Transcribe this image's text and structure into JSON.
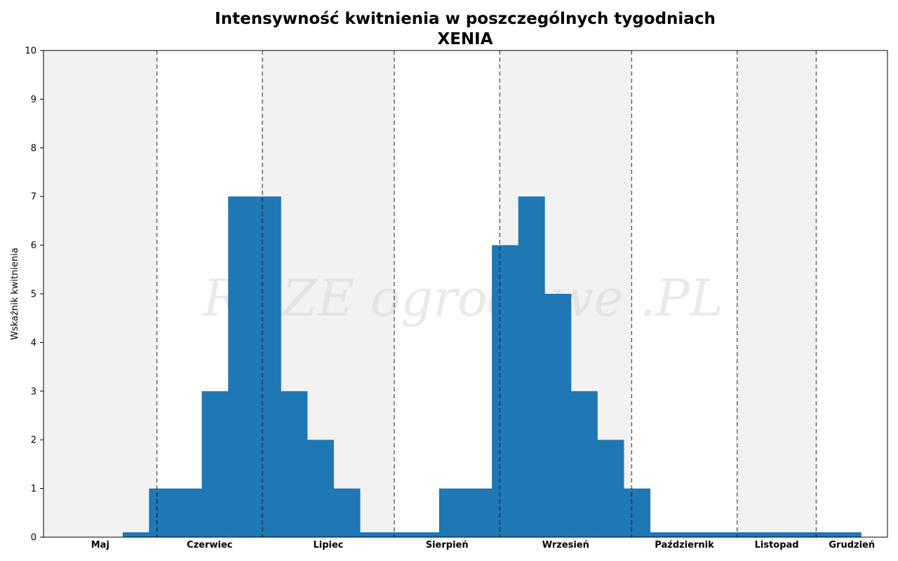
{
  "chart_data": {
    "type": "bar",
    "title": "Intensywność kwitnienia w poszczególnych tygodniach",
    "subtitle": "XENIA",
    "ylabel": "Wskaźnik kwitnienia",
    "ylim": [
      0,
      10
    ],
    "yticks": [
      0,
      1,
      2,
      3,
      4,
      5,
      6,
      7,
      8,
      9,
      10
    ],
    "week_range": [
      18,
      50
    ],
    "months": [
      {
        "name": "Maj",
        "start_week": 18.0,
        "end_week": 22.3,
        "shaded": true
      },
      {
        "name": "Czerwiec",
        "start_week": 22.3,
        "end_week": 26.3,
        "shaded": false
      },
      {
        "name": "Lipiec",
        "start_week": 26.3,
        "end_week": 31.3,
        "shaded": true
      },
      {
        "name": "Sierpień",
        "start_week": 31.3,
        "end_week": 35.3,
        "shaded": false
      },
      {
        "name": "Wrzesień",
        "start_week": 35.3,
        "end_week": 40.3,
        "shaded": true
      },
      {
        "name": "Październik",
        "start_week": 40.3,
        "end_week": 44.3,
        "shaded": false
      },
      {
        "name": "Listopad",
        "start_week": 44.3,
        "end_week": 47.3,
        "shaded": true
      },
      {
        "name": "Grudzień",
        "start_week": 47.3,
        "end_week": 50.0,
        "shaded": false
      }
    ],
    "weeks": [
      21,
      22,
      23,
      24,
      25,
      26,
      27,
      28,
      29,
      30,
      31,
      32,
      33,
      34,
      35,
      36,
      37,
      38,
      39,
      40,
      41,
      42,
      43,
      44,
      45,
      46,
      47,
      48
    ],
    "values": [
      0.1,
      1,
      1,
      3,
      7,
      7,
      3,
      2,
      1,
      0.1,
      0.1,
      0.1,
      1,
      1,
      6,
      7,
      5,
      3,
      2,
      1,
      0.1,
      0.1,
      0.1,
      0.1,
      0.1,
      0.1,
      0.1,
      0.1
    ],
    "bar_color": "#1f77b4",
    "shade_color": "#f2f2f2",
    "divider_color": "#000000",
    "grid": false,
    "watermark": "ROZE ogrodowe .PL"
  }
}
